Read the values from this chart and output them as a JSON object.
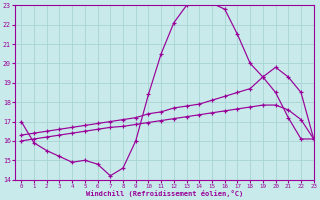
{
  "xlabel": "Windchill (Refroidissement éolien,°C)",
  "xlim": [
    -0.5,
    23
  ],
  "ylim": [
    14,
    23
  ],
  "bg_color": "#c8eaea",
  "grid_color": "#a8d4d4",
  "line_color": "#990099",
  "curve1_x": [
    0,
    1,
    2,
    3,
    4,
    5,
    6,
    7,
    8,
    9,
    10,
    11,
    12,
    13,
    14,
    15,
    16,
    17,
    18,
    19,
    20,
    21,
    22,
    23
  ],
  "curve1_y": [
    17.0,
    15.9,
    15.5,
    15.2,
    14.9,
    15.0,
    14.8,
    14.2,
    14.6,
    16.0,
    18.4,
    20.5,
    22.1,
    23.0,
    23.1,
    23.1,
    22.8,
    21.5,
    20.0,
    19.3,
    18.5,
    17.2,
    16.1,
    16.1
  ],
  "curve2_x": [
    0,
    1,
    2,
    3,
    4,
    5,
    6,
    7,
    8,
    9,
    10,
    11,
    12,
    13,
    14,
    15,
    16,
    17,
    18,
    19,
    20,
    21,
    22,
    23
  ],
  "curve2_y": [
    16.3,
    16.4,
    16.5,
    16.6,
    16.7,
    16.8,
    16.9,
    17.0,
    17.1,
    17.2,
    17.4,
    17.5,
    17.7,
    17.8,
    17.9,
    18.1,
    18.3,
    18.5,
    18.7,
    19.3,
    19.8,
    19.3,
    18.5,
    16.1
  ],
  "curve3_x": [
    0,
    1,
    2,
    3,
    4,
    5,
    6,
    7,
    8,
    9,
    10,
    11,
    12,
    13,
    14,
    15,
    16,
    17,
    18,
    19,
    20,
    21,
    22,
    23
  ],
  "curve3_y": [
    16.0,
    16.1,
    16.2,
    16.3,
    16.4,
    16.5,
    16.6,
    16.7,
    16.75,
    16.85,
    16.95,
    17.05,
    17.15,
    17.25,
    17.35,
    17.45,
    17.55,
    17.65,
    17.75,
    17.85,
    17.85,
    17.6,
    17.1,
    16.1
  ],
  "xticks": [
    0,
    1,
    2,
    3,
    4,
    5,
    6,
    7,
    8,
    9,
    10,
    11,
    12,
    13,
    14,
    15,
    16,
    17,
    18,
    19,
    20,
    21,
    22,
    23
  ],
  "yticks": [
    14,
    15,
    16,
    17,
    18,
    19,
    20,
    21,
    22,
    23
  ]
}
